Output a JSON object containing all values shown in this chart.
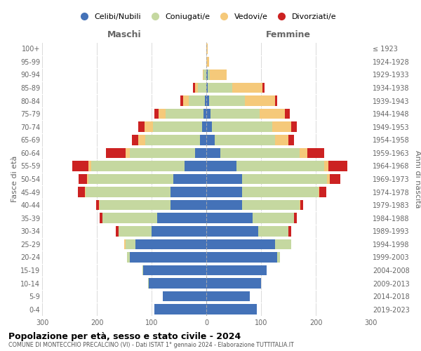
{
  "age_groups": [
    "0-4",
    "5-9",
    "10-14",
    "15-19",
    "20-24",
    "25-29",
    "30-34",
    "35-39",
    "40-44",
    "45-49",
    "50-54",
    "55-59",
    "60-64",
    "65-69",
    "70-74",
    "75-79",
    "80-84",
    "85-89",
    "90-94",
    "95-99",
    "100+"
  ],
  "birth_years": [
    "2019-2023",
    "2014-2018",
    "2009-2013",
    "2004-2008",
    "1999-2003",
    "1994-1998",
    "1989-1993",
    "1984-1988",
    "1979-1983",
    "1974-1978",
    "1969-1973",
    "1964-1968",
    "1959-1963",
    "1954-1958",
    "1949-1953",
    "1944-1948",
    "1939-1943",
    "1934-1938",
    "1929-1933",
    "1924-1928",
    "≤ 1923"
  ],
  "colors": {
    "celibi": "#4472b8",
    "coniugati": "#c5d8a0",
    "vedovi": "#f5c97a",
    "divorziati": "#cc2222"
  },
  "maschi": {
    "celibi": [
      95,
      80,
      105,
      115,
      140,
      130,
      100,
      90,
      65,
      65,
      60,
      40,
      20,
      12,
      8,
      5,
      2,
      0,
      0,
      0,
      0
    ],
    "coniugati": [
      0,
      0,
      2,
      2,
      5,
      18,
      60,
      100,
      130,
      155,
      155,
      170,
      120,
      100,
      90,
      70,
      30,
      15,
      5,
      0,
      0
    ],
    "vedovi": [
      0,
      0,
      0,
      0,
      0,
      2,
      0,
      0,
      1,
      2,
      3,
      5,
      8,
      12,
      15,
      12,
      10,
      5,
      2,
      0,
      0
    ],
    "divorziati": [
      0,
      0,
      0,
      0,
      0,
      0,
      5,
      5,
      5,
      12,
      15,
      30,
      35,
      12,
      12,
      8,
      5,
      5,
      0,
      0,
      0
    ]
  },
  "femmine": {
    "celibi": [
      92,
      80,
      100,
      110,
      130,
      125,
      95,
      85,
      65,
      65,
      65,
      55,
      25,
      15,
      10,
      8,
      5,
      2,
      2,
      0,
      0
    ],
    "coniugati": [
      0,
      0,
      0,
      0,
      5,
      30,
      55,
      75,
      105,
      140,
      155,
      160,
      145,
      110,
      110,
      90,
      65,
      45,
      5,
      0,
      0
    ],
    "vedovi": [
      0,
      0,
      0,
      0,
      0,
      0,
      0,
      0,
      2,
      2,
      5,
      8,
      15,
      25,
      35,
      45,
      55,
      55,
      30,
      5,
      2
    ],
    "divorziati": [
      0,
      0,
      0,
      0,
      0,
      0,
      5,
      5,
      5,
      12,
      20,
      35,
      30,
      10,
      10,
      10,
      5,
      5,
      0,
      0,
      0
    ]
  },
  "xlim": 300,
  "title": "Popolazione per età, sesso e stato civile - 2024",
  "subtitle": "COMUNE DI MONTECCHIO PRECALCINO (VI) - Dati ISTAT 1° gennaio 2024 - Elaborazione TUTTITALIA.IT",
  "ylabel_left": "Fasce di età",
  "ylabel_right": "Anni di nascita",
  "legend_labels": [
    "Celibi/Nubili",
    "Coniugati/e",
    "Vedovi/e",
    "Divorziati/e"
  ],
  "maschi_label": "Maschi",
  "femmine_label": "Femmine"
}
